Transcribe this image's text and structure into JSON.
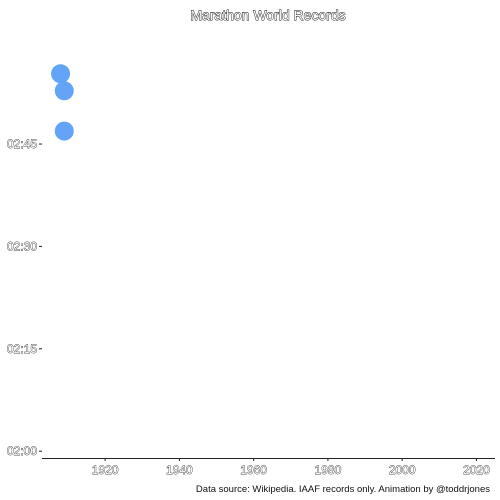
{
  "chart_data": {
    "type": "scatter",
    "title": "Marathon World Records",
    "xlabel": "",
    "ylabel": "",
    "caption": "Data source: Wikipedia. IAAF records only. Animation by @toddrjones",
    "x_ticks": [
      1920,
      1940,
      1960,
      1980,
      2000,
      2020
    ],
    "y_ticks": [
      "02:00",
      "02:15",
      "02:30",
      "02:45"
    ],
    "xlim": [
      1903,
      2025
    ],
    "ylim_minutes": [
      119,
      182
    ],
    "point_color": "#5B9FF5",
    "grid": false,
    "points": [
      {
        "x": 1908,
        "y_minutes": 175.3
      },
      {
        "x": 1909,
        "y_minutes": 172.8
      },
      {
        "x": 1909,
        "y_minutes": 166.9
      }
    ]
  }
}
